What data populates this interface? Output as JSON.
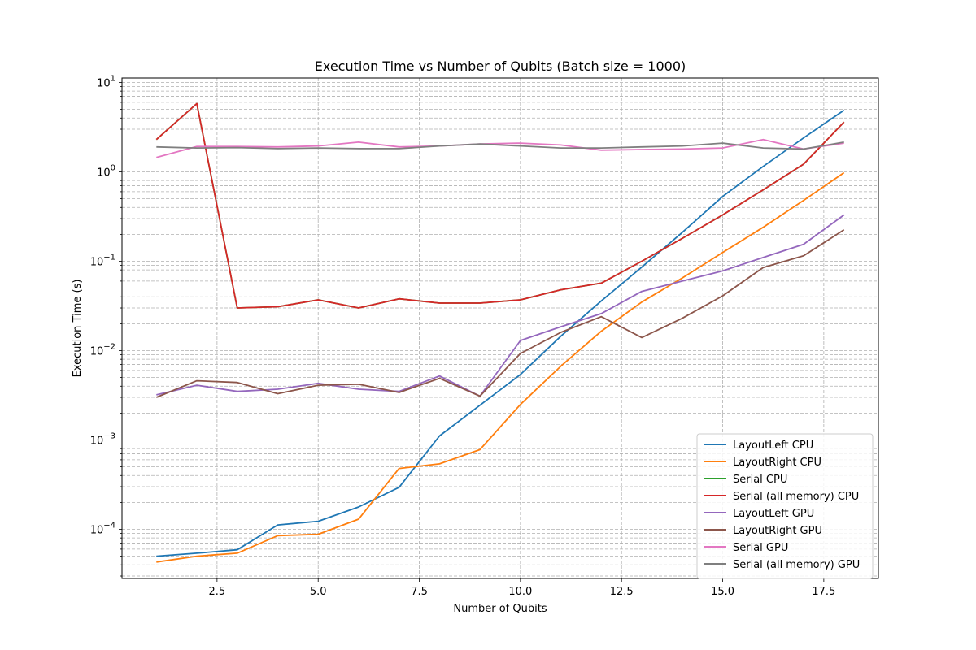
{
  "chart_data": {
    "type": "line",
    "title": "Execution Time vs Number of Qubits (Batch size = 1000)",
    "xlabel": "Number of Qubits",
    "ylabel": "Execution Time (s)",
    "xlim": [
      0.15,
      18.85
    ],
    "ylim_log10": [
      -4.55,
      1.05
    ],
    "yscale": "log",
    "grid": true,
    "legend_position": "lower-right",
    "x_ticks": [
      2.5,
      5.0,
      7.5,
      10.0,
      12.5,
      15.0,
      17.5
    ],
    "x_tick_labels": [
      "2.5",
      "5.0",
      "7.5",
      "10.0",
      "12.5",
      "15.0",
      "17.5"
    ],
    "y_ticks": [
      {
        "base": "10",
        "exp": "−4",
        "value": 0.0001
      },
      {
        "base": "10",
        "exp": "−3",
        "value": 0.001
      },
      {
        "base": "10",
        "exp": "−2",
        "value": 0.01
      },
      {
        "base": "10",
        "exp": "−1",
        "value": 0.1
      },
      {
        "base": "10",
        "exp": "0",
        "value": 1
      },
      {
        "base": "10",
        "exp": "1",
        "value": 10
      }
    ],
    "x": [
      1,
      2,
      3,
      4,
      5,
      6,
      7,
      8,
      9,
      10,
      11,
      12,
      13,
      14,
      15,
      16,
      17,
      18
    ],
    "series": [
      {
        "name": "LayoutLeft CPU",
        "color": "#1f77b4",
        "values": [
          5e-05,
          5.4e-05,
          5.9e-05,
          0.000112,
          0.000123,
          0.000178,
          0.000295,
          0.00111,
          0.00245,
          0.0054,
          0.0145,
          0.036,
          0.086,
          0.21,
          0.53,
          1.15,
          2.4,
          4.9
        ]
      },
      {
        "name": "LayoutRight CPU",
        "color": "#ff7f0e",
        "values": [
          4.3e-05,
          5e-05,
          5.4e-05,
          8.5e-05,
          8.8e-05,
          0.00013,
          0.00048,
          0.00054,
          0.00078,
          0.0025,
          0.0067,
          0.0165,
          0.035,
          0.065,
          0.125,
          0.24,
          0.48,
          0.98
        ]
      },
      {
        "name": "Serial CPU",
        "color": "#2ca02c",
        "values": [
          2.3,
          5.8,
          0.03,
          0.031,
          0.037,
          0.03,
          0.038,
          0.034,
          0.034,
          0.037,
          0.048,
          0.057,
          0.1,
          0.18,
          0.33,
          0.63,
          1.22,
          3.6
        ]
      },
      {
        "name": "Serial (all memory) CPU",
        "color": "#d62728",
        "values": [
          2.3,
          5.8,
          0.03,
          0.031,
          0.037,
          0.03,
          0.038,
          0.034,
          0.034,
          0.037,
          0.048,
          0.057,
          0.1,
          0.18,
          0.33,
          0.63,
          1.22,
          3.6
        ]
      },
      {
        "name": "LayoutLeft GPU",
        "color": "#9467bd",
        "values": [
          0.0032,
          0.0041,
          0.0035,
          0.0037,
          0.0043,
          0.0037,
          0.0035,
          0.0052,
          0.0031,
          0.013,
          0.0185,
          0.026,
          0.046,
          0.06,
          0.078,
          0.11,
          0.155,
          0.33
        ]
      },
      {
        "name": "LayoutRight GPU",
        "color": "#8c564b",
        "values": [
          0.003,
          0.0046,
          0.0044,
          0.0033,
          0.0041,
          0.0042,
          0.0034,
          0.0049,
          0.0031,
          0.0093,
          0.016,
          0.024,
          0.014,
          0.023,
          0.041,
          0.085,
          0.115,
          0.225
        ]
      },
      {
        "name": "Serial GPU",
        "color": "#e377c2",
        "values": [
          1.45,
          1.92,
          1.92,
          1.9,
          1.95,
          2.15,
          1.9,
          1.95,
          2.05,
          2.1,
          2.0,
          1.75,
          1.78,
          1.8,
          1.85,
          2.3,
          1.8,
          2.1
        ]
      },
      {
        "name": "Serial (all memory) GPU",
        "color": "#7f7f7f",
        "values": [
          1.9,
          1.85,
          1.87,
          1.82,
          1.85,
          1.82,
          1.82,
          1.95,
          2.05,
          1.95,
          1.85,
          1.85,
          1.9,
          1.95,
          2.1,
          1.85,
          1.8,
          2.15
        ]
      }
    ]
  }
}
